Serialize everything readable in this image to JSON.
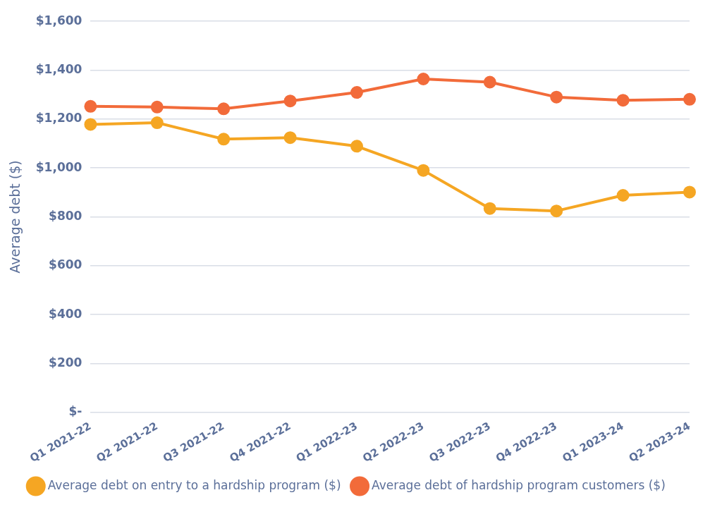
{
  "chart_data": {
    "type": "line",
    "ylabel": "Average debt ($)",
    "categories": [
      "Q1 2021-22",
      "Q2 2021-22",
      "Q3 2021-22",
      "Q4 2021-22",
      "Q1 2022-23",
      "Q2 2022-23",
      "Q3 2022-23",
      "Q4 2022-23",
      "Q1 2023-24",
      "Q2 2023-24"
    ],
    "series": [
      {
        "name": "Average debt on entry to a hardship program ($)",
        "color": "#f5a623",
        "values": [
          1178,
          1185,
          1118,
          1124,
          1089,
          990,
          834,
          824,
          888,
          901
        ]
      },
      {
        "name": "Average debt of hardship program customers ($)",
        "color": "#f26b3a",
        "values": [
          1252,
          1249,
          1242,
          1274,
          1309,
          1364,
          1351,
          1290,
          1277,
          1281
        ]
      }
    ],
    "ylim": [
      0,
      1600
    ],
    "yticks": [
      {
        "value": 0,
        "label": "$-"
      },
      {
        "value": 200,
        "label": "$200"
      },
      {
        "value": 400,
        "label": "$400"
      },
      {
        "value": 600,
        "label": "$600"
      },
      {
        "value": 800,
        "label": "$800"
      },
      {
        "value": 1000,
        "label": "$1,000"
      },
      {
        "value": 1200,
        "label": "$1,200"
      },
      {
        "value": 1400,
        "label": "$1,400"
      },
      {
        "value": 1600,
        "label": "$1,600"
      }
    ],
    "grid": "y",
    "legend": "bottom",
    "marker": "circle",
    "line_style": "solid"
  }
}
